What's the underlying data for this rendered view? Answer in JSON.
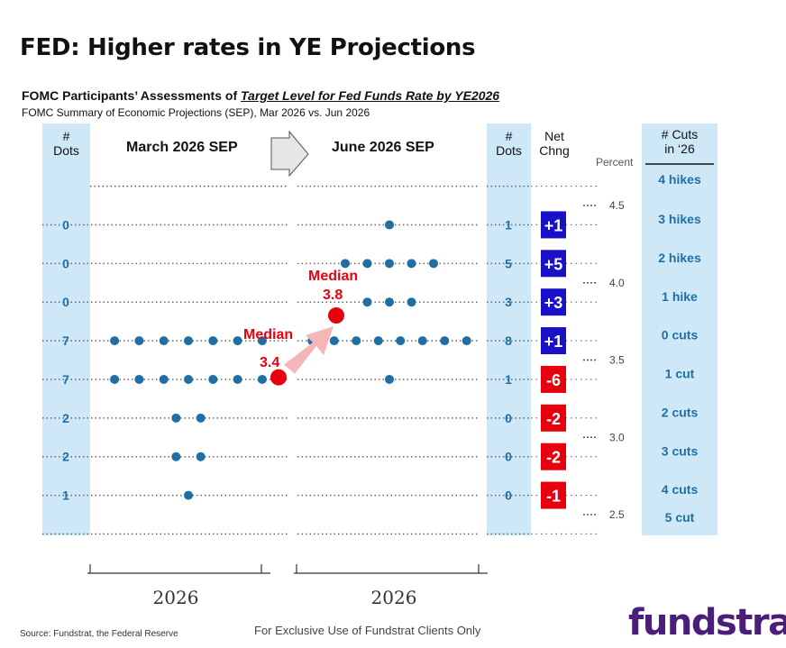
{
  "title": "FED: Higher rates in YE Projections",
  "subtitle_prefix": "FOMC Participants’ Assessments of ",
  "subtitle_highlight": "Target Level for Fed Funds Rate by YE2026",
  "subtitle2": "FOMC Summary of Economic Projections (SEP), Mar 2026 vs. Jun 2026",
  "headers": {
    "dots_left": [
      "#",
      "Dots"
    ],
    "march": "March 2026 SEP",
    "june": "June 2026 SEP",
    "dots_right": [
      "#",
      "Dots"
    ],
    "net_change": [
      "Net",
      "Chng"
    ],
    "percent": "Percent",
    "cuts": [
      "# Cuts",
      "in ‘26"
    ]
  },
  "footer": {
    "source": "Source: Fundstrat, the Federal Reserve",
    "exclusive": "For Exclusive Use of Fundstrat Clients Only",
    "logo": "fundstrat"
  },
  "colors": {
    "column_bg": "#cfe8f8",
    "dot": "#1f6fa5",
    "median": "#e8000e",
    "positive": "#1a10c8",
    "negative": "#e8000e",
    "cuts_text": "#1f6fa5",
    "arrow": "#f4b6b6"
  },
  "chart_data": {
    "type": "scatter",
    "x_axis_label": "2026",
    "y_axis_ticks": [
      4.5,
      4.0,
      3.5,
      3.0,
      2.5
    ],
    "rows": [
      {
        "rate": 4.375,
        "march_dots": 0,
        "june_dots": 1,
        "net_change": "+1",
        "cuts": "3 hikes"
      },
      {
        "rate": 4.125,
        "march_dots": 0,
        "june_dots": 5,
        "net_change": "+5",
        "cuts": "2 hikes"
      },
      {
        "rate": 3.875,
        "march_dots": 0,
        "june_dots": 3,
        "net_change": "+3",
        "cuts": "1 hike"
      },
      {
        "rate": 3.625,
        "march_dots": 7,
        "june_dots": 8,
        "net_change": "+1",
        "cuts": "0 cuts"
      },
      {
        "rate": 3.375,
        "march_dots": 7,
        "june_dots": 1,
        "net_change": "-6",
        "cuts": "1 cut"
      },
      {
        "rate": 3.125,
        "march_dots": 2,
        "june_dots": 0,
        "net_change": "-2",
        "cuts": "2 cuts"
      },
      {
        "rate": 2.875,
        "march_dots": 2,
        "june_dots": 0,
        "net_change": "-2",
        "cuts": "3 cuts"
      },
      {
        "rate": 2.625,
        "march_dots": 1,
        "june_dots": 0,
        "net_change": "-1",
        "cuts": "4 cuts"
      }
    ],
    "cuts_top": "4 hikes",
    "cuts_bottom": "5 cut",
    "march_median": {
      "label": "Median",
      "value": "3.4"
    },
    "june_median": {
      "label": "Median",
      "value": "3.8"
    }
  }
}
